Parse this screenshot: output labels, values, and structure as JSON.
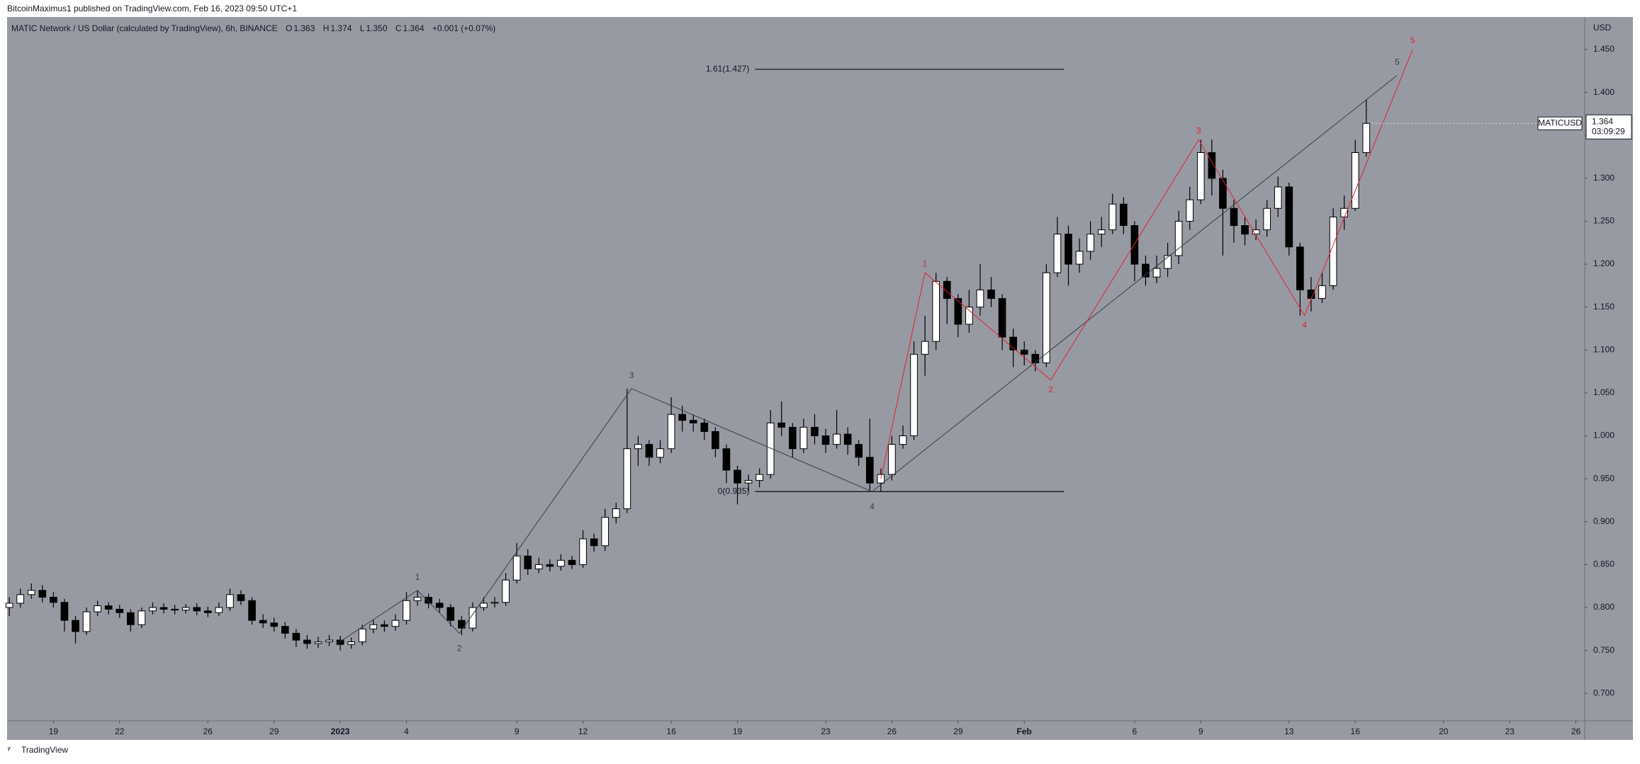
{
  "header": {
    "publisher": "BitcoinMaximus1 published on TradingView.com, Feb 16, 2023 09:50 UTC+1",
    "logo": "TradingView"
  },
  "chart_data": {
    "type": "candlestick",
    "title": "MATIC Network / US Dollar (calculated by TradingView), 6h, BINANCE",
    "ohlc_legend": [
      {
        "key": "O",
        "value": "1.363"
      },
      {
        "key": "H",
        "value": "1.374"
      },
      {
        "key": "L",
        "value": "1.350"
      },
      {
        "key": "C",
        "value": "1.364"
      }
    ],
    "change": "+0.001 (+0.07%)",
    "y_axis_label": "USD",
    "symbol": "MATICUSD",
    "last_price": 1.364,
    "countdown": "03:09:29",
    "x": [
      -2,
      -1.5,
      -1,
      -0.5,
      0,
      0.5,
      1,
      1.5,
      2,
      2.5,
      3,
      3.5,
      4,
      4.5,
      5,
      5.5,
      6,
      6.5,
      7,
      7.5,
      8,
      8.5,
      9,
      9.5,
      10,
      10.5,
      11,
      11.5,
      12,
      12.5,
      13,
      13.5,
      14,
      14.5,
      15,
      15.5,
      16,
      16.5,
      17,
      17.5,
      18,
      18.5,
      19,
      19.5,
      20,
      20.5,
      21,
      21.5,
      22,
      22.5,
      23,
      23.5,
      24,
      24.5,
      25,
      25.5,
      26,
      26.5,
      27,
      27.5,
      28,
      28.5,
      29,
      29.5,
      30,
      30.5,
      31,
      31.5,
      32,
      32.5,
      33,
      33.5,
      34,
      34.5,
      35,
      35.5,
      36,
      36.5,
      37,
      37.5,
      38,
      38.5,
      39,
      39.5,
      40,
      40.5,
      41,
      41.5,
      42,
      42.5,
      43,
      43.5,
      44,
      44.5,
      45,
      45.5,
      46,
      46.5,
      47,
      47.5,
      48,
      48.5,
      49,
      49.5,
      50,
      50.5,
      51,
      51.5,
      52,
      52.5,
      53,
      53.5,
      54,
      54.5,
      55,
      55.5,
      56,
      56.5,
      57,
      57.5,
      58,
      58.5,
      59,
      59.5
    ],
    "open": [
      0.8,
      0.805,
      0.815,
      0.82,
      0.812,
      0.806,
      0.785,
      0.772,
      0.795,
      0.802,
      0.798,
      0.794,
      0.78,
      0.796,
      0.8,
      0.798,
      0.797,
      0.8,
      0.796,
      0.794,
      0.8,
      0.815,
      0.808,
      0.785,
      0.782,
      0.778,
      0.77,
      0.762,
      0.758,
      0.76,
      0.762,
      0.757,
      0.76,
      0.775,
      0.78,
      0.778,
      0.785,
      0.808,
      0.812,
      0.805,
      0.8,
      0.785,
      0.776,
      0.8,
      0.805,
      0.806,
      0.832,
      0.86,
      0.845,
      0.85,
      0.848,
      0.855,
      0.85,
      0.88,
      0.872,
      0.905,
      0.915,
      0.985,
      0.99,
      0.975,
      0.985,
      1.025,
      1.018,
      1.015,
      1.005,
      0.985,
      0.96,
      0.945,
      0.948,
      0.955,
      1.015,
      1.01,
      0.985,
      1.01,
      1.0,
      0.99,
      1.002,
      0.99,
      0.975,
      0.945,
      0.955,
      0.99,
      1.0,
      1.095,
      1.11,
      1.18,
      1.16,
      1.13,
      1.15,
      1.17,
      1.16,
      1.115,
      1.1,
      1.095,
      1.085,
      1.19,
      1.235,
      1.2,
      1.215,
      1.235,
      1.24,
      1.27,
      1.245,
      1.2,
      1.185,
      1.195,
      1.21,
      1.25,
      1.275,
      1.33,
      1.3,
      1.265,
      1.245,
      1.235,
      1.24,
      1.265,
      1.29,
      1.22,
      1.17,
      1.16,
      1.175,
      1.255,
      1.265,
      1.33
    ],
    "high": [
      0.812,
      0.822,
      0.828,
      0.826,
      0.818,
      0.81,
      0.79,
      0.8,
      0.808,
      0.806,
      0.803,
      0.798,
      0.8,
      0.806,
      0.805,
      0.803,
      0.804,
      0.805,
      0.801,
      0.806,
      0.822,
      0.82,
      0.812,
      0.792,
      0.788,
      0.783,
      0.775,
      0.768,
      0.766,
      0.768,
      0.767,
      0.765,
      0.78,
      0.786,
      0.785,
      0.792,
      0.818,
      0.82,
      0.816,
      0.81,
      0.804,
      0.79,
      0.806,
      0.812,
      0.812,
      0.84,
      0.875,
      0.868,
      0.858,
      0.856,
      0.862,
      0.86,
      0.89,
      0.886,
      0.915,
      0.922,
      1.055,
      1.0,
      0.995,
      0.995,
      1.045,
      1.035,
      1.025,
      1.02,
      1.01,
      0.99,
      0.965,
      0.955,
      0.962,
      1.03,
      1.04,
      1.015,
      1.02,
      1.025,
      1.008,
      1.03,
      1.01,
      0.995,
      1.02,
      0.962,
      1.0,
      1.012,
      1.11,
      1.14,
      1.19,
      1.185,
      1.165,
      1.17,
      1.2,
      1.185,
      1.165,
      1.125,
      1.11,
      1.1,
      1.2,
      1.255,
      1.245,
      1.23,
      1.25,
      1.255,
      1.282,
      1.278,
      1.25,
      1.21,
      1.21,
      1.225,
      1.262,
      1.29,
      1.345,
      1.345,
      1.31,
      1.275,
      1.255,
      1.252,
      1.275,
      1.302,
      1.295,
      1.225,
      1.185,
      1.19,
      1.265,
      1.28,
      1.345,
      1.392
    ],
    "low": [
      0.79,
      0.8,
      0.81,
      0.806,
      0.8,
      0.772,
      0.758,
      0.768,
      0.79,
      0.792,
      0.788,
      0.772,
      0.776,
      0.792,
      0.793,
      0.792,
      0.793,
      0.791,
      0.789,
      0.79,
      0.796,
      0.803,
      0.78,
      0.776,
      0.772,
      0.764,
      0.754,
      0.752,
      0.753,
      0.755,
      0.75,
      0.752,
      0.756,
      0.77,
      0.772,
      0.773,
      0.78,
      0.802,
      0.799,
      0.794,
      0.778,
      0.768,
      0.772,
      0.796,
      0.8,
      0.802,
      0.828,
      0.838,
      0.84,
      0.842,
      0.843,
      0.845,
      0.846,
      0.865,
      0.866,
      0.898,
      0.91,
      0.965,
      0.965,
      0.968,
      0.98,
      1.005,
      1.005,
      0.995,
      0.975,
      0.945,
      0.92,
      0.935,
      0.94,
      0.95,
      1.0,
      0.975,
      0.98,
      0.99,
      0.98,
      0.985,
      0.978,
      0.965,
      0.935,
      0.935,
      0.948,
      0.985,
      0.995,
      1.07,
      1.1,
      1.13,
      1.115,
      1.12,
      1.14,
      1.15,
      1.1,
      1.08,
      1.082,
      1.075,
      1.08,
      1.185,
      1.175,
      1.19,
      1.205,
      1.22,
      1.235,
      1.235,
      1.18,
      1.175,
      1.178,
      1.185,
      1.2,
      1.24,
      1.27,
      1.28,
      1.21,
      1.225,
      1.222,
      1.228,
      1.232,
      1.255,
      1.21,
      1.14,
      1.145,
      1.155,
      1.17,
      1.24,
      1.262,
      1.325
    ],
    "close": [
      0.805,
      0.815,
      0.82,
      0.812,
      0.806,
      0.785,
      0.772,
      0.795,
      0.802,
      0.798,
      0.794,
      0.78,
      0.796,
      0.8,
      0.798,
      0.797,
      0.8,
      0.796,
      0.794,
      0.8,
      0.815,
      0.808,
      0.785,
      0.782,
      0.778,
      0.77,
      0.762,
      0.758,
      0.76,
      0.762,
      0.757,
      0.76,
      0.775,
      0.78,
      0.778,
      0.785,
      0.808,
      0.812,
      0.805,
      0.8,
      0.785,
      0.776,
      0.8,
      0.805,
      0.806,
      0.832,
      0.86,
      0.845,
      0.85,
      0.848,
      0.855,
      0.85,
      0.88,
      0.872,
      0.905,
      0.915,
      0.985,
      0.99,
      0.975,
      0.985,
      1.025,
      1.018,
      1.015,
      1.005,
      0.985,
      0.96,
      0.945,
      0.948,
      0.955,
      1.015,
      1.01,
      0.985,
      1.01,
      1.0,
      0.99,
      1.002,
      0.99,
      0.975,
      0.945,
      0.955,
      0.99,
      1.0,
      1.095,
      1.11,
      1.18,
      1.16,
      1.13,
      1.15,
      1.17,
      1.16,
      1.115,
      1.1,
      1.095,
      1.085,
      1.19,
      1.235,
      1.2,
      1.215,
      1.235,
      1.24,
      1.27,
      1.245,
      1.2,
      1.185,
      1.195,
      1.21,
      1.25,
      1.275,
      1.33,
      1.3,
      1.265,
      1.245,
      1.235,
      1.24,
      1.265,
      1.29,
      1.22,
      1.17,
      1.16,
      1.175,
      1.255,
      1.265,
      1.33,
      1.364
    ],
    "up_color": "#ffffff",
    "down_color": "#000000",
    "xlim": [
      -2.1,
      69.4
    ],
    "xticks": [
      {
        "value": 0,
        "label": "19"
      },
      {
        "value": 3,
        "label": "22"
      },
      {
        "value": 7,
        "label": "26"
      },
      {
        "value": 10,
        "label": "29"
      },
      {
        "value": 13,
        "label": "2023"
      },
      {
        "value": 16,
        "label": "4"
      },
      {
        "value": 21,
        "label": "9"
      },
      {
        "value": 24,
        "label": "12"
      },
      {
        "value": 28,
        "label": "16"
      },
      {
        "value": 31,
        "label": "19"
      },
      {
        "value": 35,
        "label": "23"
      },
      {
        "value": 38,
        "label": "26"
      },
      {
        "value": 41,
        "label": "29"
      },
      {
        "value": 44,
        "label": "Feb"
      },
      {
        "value": 49,
        "label": "6"
      },
      {
        "value": 52,
        "label": "9"
      },
      {
        "value": 56,
        "label": "13"
      },
      {
        "value": 59,
        "label": "16"
      },
      {
        "value": 63,
        "label": "20"
      },
      {
        "value": 66,
        "label": "23"
      },
      {
        "value": 69,
        "label": "26"
      }
    ],
    "ylim": [
      0.668,
      1.483
    ],
    "yticks": [
      {
        "value": 0.7,
        "label": "0.700"
      },
      {
        "value": 0.75,
        "label": "0.750"
      },
      {
        "value": 0.8,
        "label": "0.800"
      },
      {
        "value": 0.85,
        "label": "0.850"
      },
      {
        "value": 0.9,
        "label": "0.900"
      },
      {
        "value": 0.95,
        "label": "0.950"
      },
      {
        "value": 1.0,
        "label": "1.000"
      },
      {
        "value": 1.05,
        "label": "1.050"
      },
      {
        "value": 1.1,
        "label": "1.100"
      },
      {
        "value": 1.15,
        "label": "1.150"
      },
      {
        "value": 1.2,
        "label": "1.200"
      },
      {
        "value": 1.25,
        "label": "1.250"
      },
      {
        "value": 1.3,
        "label": "1.300"
      },
      {
        "value": 1.35,
        "label": "1.350"
      },
      {
        "value": 1.4,
        "label": "1.400"
      },
      {
        "value": 1.45,
        "label": "1.450"
      }
    ],
    "waves": [
      {
        "color": "#3a3d46",
        "x": [
          12.8,
          16.5,
          18.4,
          26.2,
          37.1,
          60.9
        ],
        "y": [
          0.757,
          0.82,
          0.77,
          1.055,
          0.935,
          1.42
        ],
        "labels": [
          "1",
          "2",
          "3",
          "4",
          "5"
        ]
      },
      {
        "color": "#e0232e",
        "x": [
          37.5,
          39.5,
          45.2,
          51.9,
          56.7,
          61.6
        ],
        "y": [
          0.95,
          1.19,
          1.065,
          1.345,
          1.14,
          1.45
        ],
        "labels": [
          "1",
          "2",
          "3",
          "4",
          "5"
        ]
      }
    ],
    "fib_levels": [
      {
        "value": 1.427,
        "label": "1.61(1.427)"
      },
      {
        "value": 0.935,
        "label": "0(0.935)"
      }
    ],
    "fib_x": [
      31.8,
      45.8
    ]
  }
}
